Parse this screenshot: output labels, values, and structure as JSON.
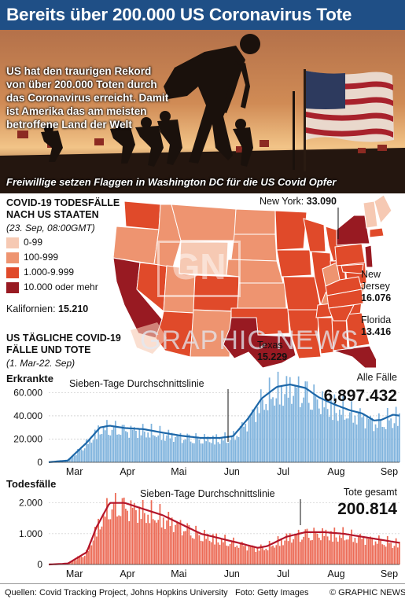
{
  "title": "Bereits über 200.000 US Coronavirus Tote",
  "photo": {
    "text": "US hat den traurigen Rekord von über 200.000 Toten durch das Coronavirus erreicht. Damit ist Amerika das am meisten betroffene Land der Welt",
    "caption": "Freiwillige setzen Flaggen in Washington DC für die US Covid Opfer"
  },
  "map": {
    "title_line1": "COVID-19 TODESFÄLLE",
    "title_line2": "NACH US STAATEN",
    "subtitle": "(23. Sep, 08:00GMT)",
    "legend": [
      {
        "label": "0-99",
        "color": "#f6c9b3"
      },
      {
        "label": "100-999",
        "color": "#ee9470"
      },
      {
        "label": "1.000-9.999",
        "color": "#e04a2a"
      },
      {
        "label": "10.000 oder mehr",
        "color": "#981a22"
      }
    ],
    "callouts": {
      "new_york": {
        "label": "New York:",
        "value": "33.090"
      },
      "new_jersey": {
        "label_line1": "New",
        "label_line2": "Jersey",
        "value": "16.076"
      },
      "florida": {
        "label": "Florida",
        "value": "13.416"
      },
      "texas": {
        "label": "Texas",
        "value": "15.229"
      },
      "california": {
        "label": "Kalifornien:",
        "value": "15.210"
      }
    },
    "watermark": "GRAPHIC NEWS"
  },
  "chart_section": {
    "title_line1": "US TÄGLICHE COVID-19",
    "title_line2": "FÄLLE UND TOTE",
    "subtitle": "(1. Mar-22. Sep)"
  },
  "chart_data": [
    {
      "type": "bar",
      "title": "Erkrankte",
      "total_label": "Alle Fälle",
      "total_value": "6,897.432",
      "avg_label": "Sieben-Tage Durchschnittslinie",
      "ylim": [
        0,
        65000
      ],
      "yticks": [
        "0",
        "20.000",
        "40.000",
        "60.000"
      ],
      "ytick_values": [
        0,
        20000,
        40000,
        60000
      ],
      "months": [
        "Mar",
        "Apr",
        "Mai",
        "Jun",
        "Jul",
        "Aug",
        "Sep"
      ],
      "anchors_day": [
        0,
        10,
        20,
        27,
        32,
        40,
        50,
        60,
        70,
        80,
        90,
        97,
        105,
        112,
        120,
        127,
        135,
        142,
        150,
        158,
        165,
        171,
        175,
        181,
        185
      ],
      "anchors_avg": [
        100,
        1500,
        17000,
        30000,
        31500,
        29500,
        28500,
        25500,
        22800,
        21000,
        21000,
        22500,
        38000,
        55000,
        65000,
        67000,
        64000,
        56000,
        50000,
        45000,
        42000,
        36000,
        36500,
        41000,
        40000
      ],
      "bar_color": "#7fb3dd",
      "line_color": "#1d67a8"
    },
    {
      "type": "bar",
      "title": "Todesfälle",
      "total_label": "Tote gesamt",
      "total_value": "200.814",
      "avg_label": "Sieben-Tage Durchschnittslinie",
      "ylim": [
        0,
        2300
      ],
      "yticks": [
        "0",
        "1.000",
        "2.000"
      ],
      "ytick_values": [
        0,
        1000,
        2000
      ],
      "months": [
        "Mar",
        "Apr",
        "Mai",
        "Jun",
        "Jul",
        "Aug",
        "Sep"
      ],
      "anchors_day": [
        0,
        10,
        20,
        25,
        32,
        40,
        50,
        60,
        70,
        80,
        90,
        100,
        110,
        115,
        125,
        135,
        145,
        155,
        165,
        175,
        185
      ],
      "anchors_avg": [
        0,
        30,
        400,
        1200,
        2000,
        2000,
        1800,
        1600,
        1300,
        1000,
        850,
        700,
        540,
        600,
        900,
        1050,
        1050,
        1000,
        900,
        800,
        700
      ],
      "bar_color": "#ec6a55",
      "line_color": "#b3152a"
    }
  ],
  "footer": {
    "sources": "Quellen: Covid Tracking Project, Johns Hopkins University",
    "photo_credit": "Foto: Getty Images",
    "copyright": "© GRAPHIC NEWS"
  }
}
